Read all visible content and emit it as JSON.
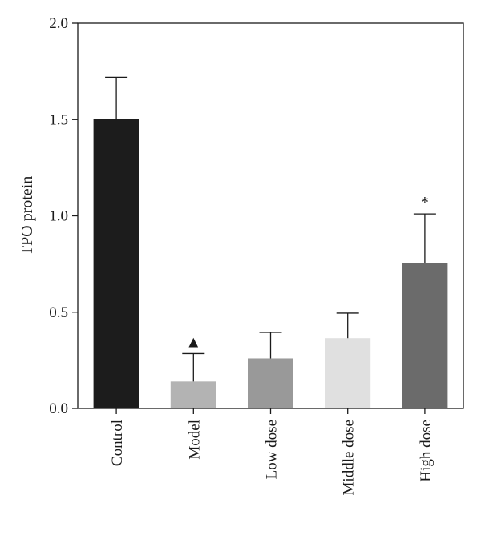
{
  "chart_data": {
    "type": "bar",
    "title": "",
    "xlabel": "",
    "ylabel": "TPO protein",
    "ylim": [
      0,
      2.0
    ],
    "yticks": [
      "0.0",
      "0.5",
      "1.0",
      "1.5",
      "2.0"
    ],
    "grid": false,
    "categories": [
      "Control",
      "Model",
      "Low dose",
      "Middle dose",
      "High dose"
    ],
    "values": [
      1.505,
      0.14,
      0.26,
      0.365,
      0.755
    ],
    "errors": [
      0.215,
      0.145,
      0.135,
      0.13,
      0.255
    ],
    "colors": [
      "#1c1c1c",
      "#b3b3b3",
      "#999999",
      "#e0e0e0",
      "#6b6b6b"
    ],
    "annotations": [
      "",
      "▲",
      "",
      "",
      "*"
    ]
  }
}
